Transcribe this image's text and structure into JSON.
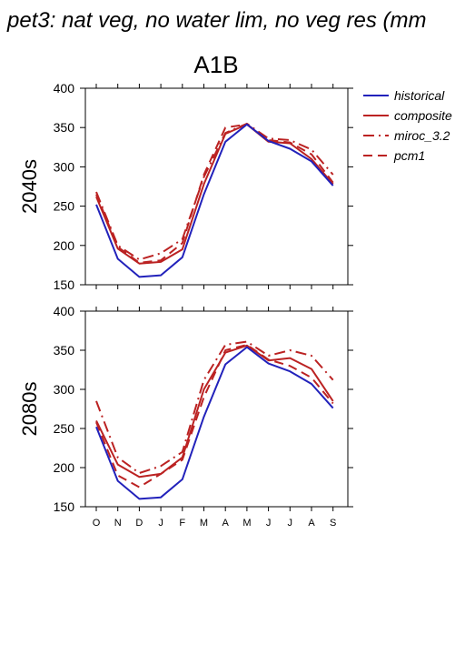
{
  "title": "pet3: nat veg, no water lim, no veg res (mm",
  "scenario": "A1B",
  "legend": [
    {
      "label": "historical",
      "color": "#2222bb",
      "dash": "solid"
    },
    {
      "label": "composite",
      "color": "#bb2222",
      "dash": "solid"
    },
    {
      "label": "miroc_3.2",
      "color": "#bb2222",
      "dash": "dashdot"
    },
    {
      "label": "pcm1",
      "color": "#bb2222",
      "dash": "dash"
    }
  ],
  "chart_data": [
    {
      "type": "line",
      "title": "A1B",
      "ylabel": "2040s",
      "xlabel": "",
      "categories": [
        "O",
        "N",
        "D",
        "J",
        "F",
        "M",
        "A",
        "M",
        "J",
        "J",
        "A",
        "S"
      ],
      "ylim": [
        150,
        400
      ],
      "yticks": [
        "150",
        "200",
        "250",
        "300",
        "350",
        "400"
      ],
      "series": [
        {
          "name": "historical",
          "values": [
            252,
            183,
            160,
            162,
            185,
            265,
            332,
            354,
            333,
            323,
            307,
            276
          ]
        },
        {
          "name": "composite",
          "values": [
            262,
            196,
            177,
            179,
            195,
            278,
            342,
            354,
            332,
            330,
            310,
            278
          ]
        },
        {
          "name": "miroc_3.2",
          "values": [
            268,
            200,
            182,
            190,
            208,
            287,
            343,
            355,
            336,
            334,
            322,
            290
          ]
        },
        {
          "name": "pcm1",
          "values": [
            265,
            198,
            178,
            181,
            203,
            290,
            350,
            354,
            334,
            331,
            316,
            280
          ]
        }
      ]
    },
    {
      "type": "line",
      "title": "",
      "ylabel": "2080s",
      "xlabel": "",
      "categories": [
        "O",
        "N",
        "D",
        "J",
        "F",
        "M",
        "A",
        "M",
        "J",
        "J",
        "A",
        "S"
      ],
      "ylim": [
        150,
        400
      ],
      "yticks": [
        "150",
        "200",
        "250",
        "300",
        "350",
        "400"
      ],
      "series": [
        {
          "name": "historical",
          "values": [
            252,
            183,
            160,
            162,
            185,
            265,
            332,
            354,
            333,
            323,
            307,
            276
          ]
        },
        {
          "name": "composite",
          "values": [
            260,
            204,
            188,
            192,
            213,
            300,
            347,
            356,
            337,
            340,
            326,
            285
          ]
        },
        {
          "name": "miroc_3.2",
          "values": [
            285,
            213,
            193,
            202,
            220,
            312,
            357,
            361,
            343,
            350,
            343,
            312
          ]
        },
        {
          "name": "pcm1",
          "values": [
            258,
            190,
            175,
            192,
            210,
            290,
            350,
            357,
            338,
            330,
            315,
            282
          ]
        }
      ]
    }
  ]
}
